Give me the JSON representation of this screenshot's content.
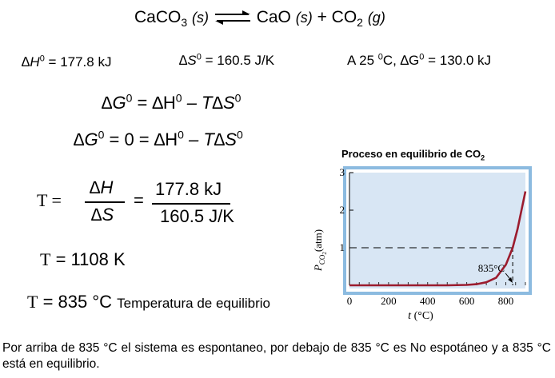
{
  "equation": {
    "reactant": "CaCO",
    "reactant_sub": "3",
    "reactant_state": "(s)",
    "arrow": "⇌",
    "product1": "CaO",
    "product1_state": "(s)",
    "plus": "+",
    "product2": "CO",
    "product2_sub": "2",
    "product2_state": "(g)"
  },
  "values": {
    "dh_sym": "∆H",
    "dh_sup": "0",
    "dh_val": "= 177.8 kJ",
    "ds_sym": "∆S",
    "ds_sup": "0",
    "ds_val": "= 160.5 J/K",
    "dg_prefix": "A 25 ",
    "dg_sup1": "0",
    "dg_mid": "C, ∆G",
    "dg_sup2": "0",
    "dg_val": "= 130.0 kJ"
  },
  "formula1": {
    "dg": "∆G",
    "sup": "0",
    "rest1": " = ∆H",
    "sup2": "0",
    "rest2": " – T∆S",
    "sup3": "0"
  },
  "formula2": {
    "dg": "∆G",
    "sup": "0",
    "rest1": " = 0 = ∆H",
    "sup2": "0",
    "rest2": " – T∆S",
    "sup3": "0"
  },
  "fraction": {
    "t_label": "T =",
    "num_sym": "∆H",
    "den_sym": "∆S",
    "equals": "=",
    "num_val": "177.8 kJ",
    "den_val": "160.5 J/K"
  },
  "result1": {
    "t": "T",
    "val": " = 1108 K"
  },
  "result2": {
    "t": "T",
    "val": " = 835 °C",
    "note": "Temperatura de equilibrio"
  },
  "conclusion": "Por arriba de 835 °C el sistema es espontaneo, por debajo de 835 °C es No espotáneo y a 835 °C está en equilibrio.",
  "chart_title_main": "Proceso en equilibrio de ",
  "chart_title_co": "CO",
  "chart_title_sub": "2",
  "chart_data": {
    "type": "line",
    "xlabel": "t (°C)",
    "ylabel": "P",
    "ylabel_sub": "CO2",
    "ylabel_unit": "(atm)",
    "xlim": [
      0,
      900
    ],
    "ylim": [
      0,
      3
    ],
    "xticks": [
      0,
      200,
      400,
      600,
      800
    ],
    "yticks": [
      1,
      2,
      3
    ],
    "annotation": "835°C",
    "reference_line_y": 1,
    "series": [
      {
        "x": [
          0,
          100,
          200,
          300,
          400,
          500,
          600,
          650,
          700,
          750,
          800,
          835,
          860,
          880,
          900
        ],
        "y": [
          0,
          0,
          0,
          0,
          0,
          0,
          0.01,
          0.03,
          0.08,
          0.2,
          0.55,
          1.0,
          1.5,
          2.0,
          2.5
        ]
      }
    ],
    "colors": {
      "line": "#9c1c2e",
      "plot_bg": "#d8e6f4",
      "frame": "#8cbbe0"
    }
  }
}
